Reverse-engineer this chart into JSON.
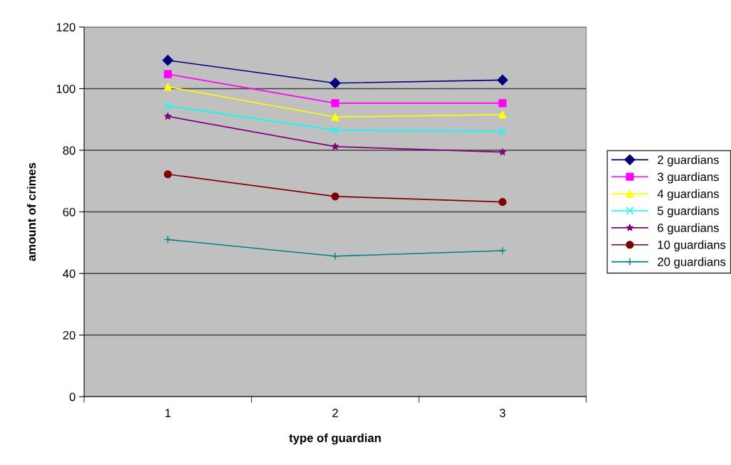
{
  "chart_data": {
    "type": "line",
    "xlabel": "type of guardian",
    "ylabel": "amount of crimes",
    "categories": [
      "1",
      "2",
      "3"
    ],
    "series": [
      {
        "name": "2 guardians",
        "color": "#000080",
        "marker": "diamond",
        "values": [
          109.2,
          101.8,
          102.8
        ]
      },
      {
        "name": "3 guardians",
        "color": "#ff00ff",
        "marker": "square",
        "values": [
          104.7,
          95.3,
          95.3
        ]
      },
      {
        "name": "4 guardians",
        "color": "#ffff00",
        "marker": "triangle",
        "values": [
          100.6,
          90.8,
          91.6
        ]
      },
      {
        "name": "5 guardians",
        "color": "#00ffff",
        "marker": "cross",
        "values": [
          94.4,
          86.5,
          86.1
        ]
      },
      {
        "name": "6 guardians",
        "color": "#800080",
        "marker": "star",
        "values": [
          91.0,
          81.2,
          79.4
        ]
      },
      {
        "name": "10 guardians",
        "color": "#800000",
        "marker": "circle",
        "values": [
          72.2,
          65.0,
          63.2
        ]
      },
      {
        "name": "20 guardians",
        "color": "#008080",
        "marker": "plus",
        "values": [
          51.0,
          45.6,
          47.4
        ]
      }
    ],
    "ylim": [
      0,
      120
    ],
    "yticks": [
      0,
      20,
      40,
      60,
      80,
      100,
      120
    ],
    "grid": "y",
    "legend": "right",
    "line_style": "solid"
  }
}
